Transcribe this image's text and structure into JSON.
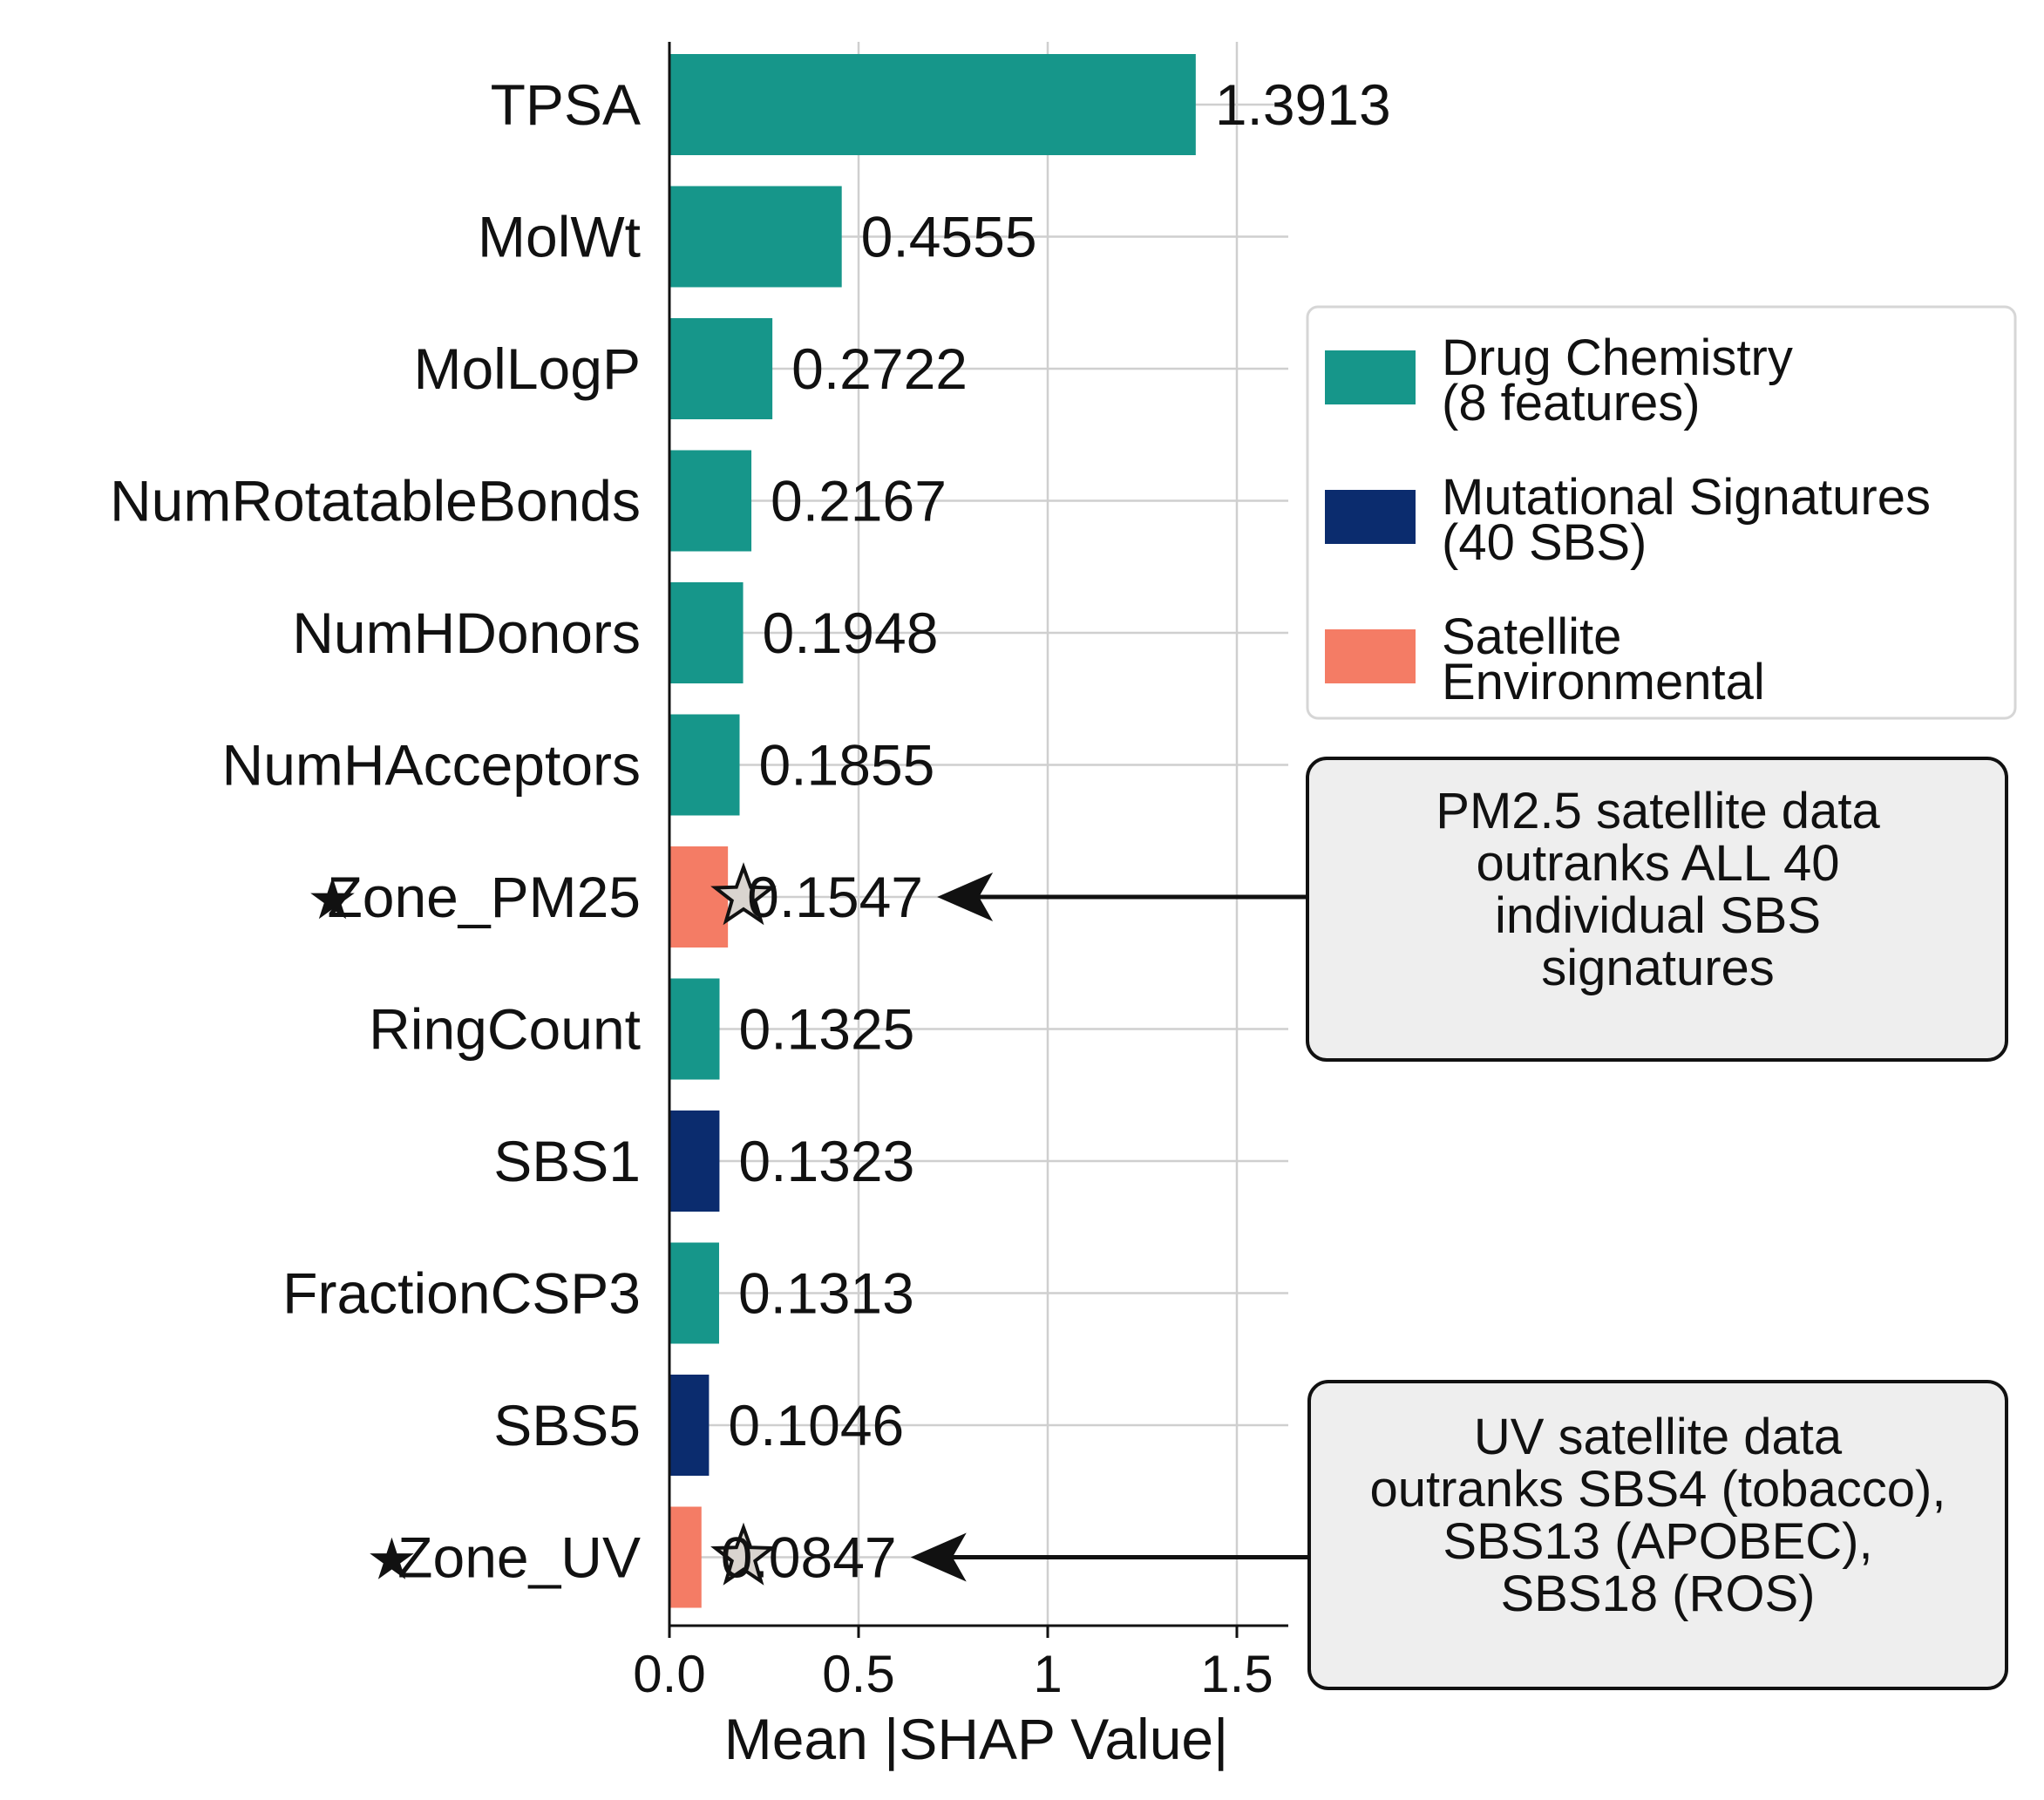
{
  "chart_data": {
    "type": "bar",
    "orientation": "horizontal",
    "categories": [
      "TPSA",
      "MolWt",
      "MolLogP",
      "NumRotatableBonds",
      "NumHDonors",
      "NumHAcceptors",
      "Zone_PM25",
      "RingCount",
      "SBS1",
      "FractionCSP3",
      "SBS5",
      "Zone_UV"
    ],
    "values": [
      1.3913,
      0.4555,
      0.2722,
      0.2167,
      0.1948,
      0.1855,
      0.1547,
      0.1325,
      0.1323,
      0.1313,
      0.1046,
      0.0847
    ],
    "value_labels": [
      "1.3913",
      "0.4555",
      "0.2722",
      "0.2167",
      "0.1948",
      "0.1855",
      "0.1547",
      "0.1325",
      "0.1323",
      "0.1313",
      "0.1046",
      "0.0847"
    ],
    "groups": [
      "drug",
      "drug",
      "drug",
      "drug",
      "drug",
      "drug",
      "satellite",
      "drug",
      "mutational",
      "drug",
      "mutational",
      "satellite"
    ],
    "starred": [
      false,
      false,
      false,
      false,
      false,
      false,
      true,
      false,
      false,
      false,
      false,
      true
    ],
    "star_glyph": "★",
    "xlabel": "Mean |SHAP Value|",
    "ylabel": "",
    "xlim": [
      0,
      1.6
    ],
    "xticks": [
      0.0,
      0.5,
      1.0,
      1.5
    ],
    "xtick_labels": [
      "0.0",
      "0.5",
      "1",
      "1.5"
    ],
    "grid": true,
    "legend": {
      "placement": "right",
      "entries": [
        {
          "group": "drug",
          "lines": [
            "Drug Chemistry",
            "(8 features)"
          ],
          "color": "#16968a"
        },
        {
          "group": "mutational",
          "lines": [
            "Mutational Signatures",
            "(40 SBS)"
          ],
          "color": "#0b2c6e"
        },
        {
          "group": "satellite",
          "lines": [
            "Satellite",
            "Environmental"
          ],
          "color": "#f47c65"
        }
      ]
    },
    "annotations": [
      {
        "target": "Zone_PM25",
        "lines": [
          "PM2.5 satellite data",
          "outranks ALL 40",
          "individual SBS",
          "signatures"
        ]
      },
      {
        "target": "Zone_UV",
        "lines": [
          "UV satellite data",
          "outranks SBS4 (tobacco),",
          "SBS13 (APOBEC),",
          "SBS18 (ROS)"
        ]
      }
    ]
  },
  "colors": {
    "drug": "#16968a",
    "mutational": "#0b2c6e",
    "satellite": "#f47c65",
    "grid": "#cfcfcf",
    "annotation_box": "#eeeeee"
  }
}
